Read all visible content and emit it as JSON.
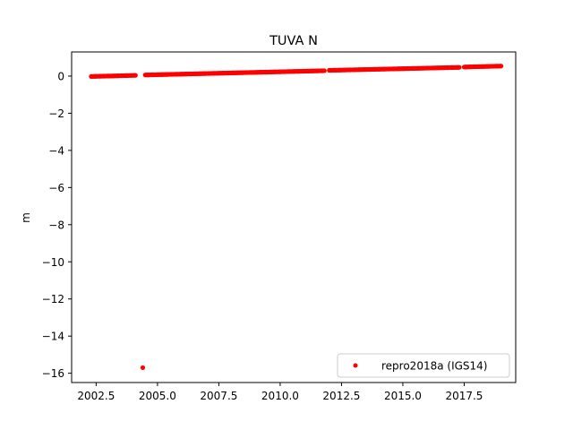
{
  "chart_data": {
    "type": "scatter",
    "title": "TUVA N",
    "xlabel": "",
    "ylabel": "m",
    "xlim": [
      2001.5,
      2019.6
    ],
    "ylim": [
      -16.5,
      1.3
    ],
    "xticks": [
      2002.5,
      2005.0,
      2007.5,
      2010.0,
      2012.5,
      2015.0,
      2017.5
    ],
    "xtick_labels": [
      "2002.5",
      "2005.0",
      "2007.5",
      "2010.0",
      "2012.5",
      "2015.0",
      "2017.5"
    ],
    "yticks": [
      0,
      -2,
      -4,
      -6,
      -8,
      -10,
      -12,
      -14,
      -16
    ],
    "ytick_labels": [
      "0",
      "−2",
      "−4",
      "−6",
      "−8",
      "−10",
      "−12",
      "−14",
      "−16"
    ],
    "grid": false,
    "legend_position": "lower-right",
    "series": [
      {
        "name": "repro2018a (IGS14)",
        "color": "#ff0000",
        "marker": "circle",
        "segments": [
          {
            "x_start": 2002.3,
            "x_end": 2004.1,
            "y_start": -0.02,
            "y_end": 0.04
          },
          {
            "x_start": 2004.5,
            "x_end": 2011.8,
            "y_start": 0.06,
            "y_end": 0.29
          },
          {
            "x_start": 2012.0,
            "x_end": 2017.3,
            "y_start": 0.31,
            "y_end": 0.47
          },
          {
            "x_start": 2017.5,
            "x_end": 2019.0,
            "y_start": 0.49,
            "y_end": 0.54
          }
        ],
        "outliers": [
          {
            "x": 2004.4,
            "y": -15.7
          }
        ]
      }
    ]
  }
}
